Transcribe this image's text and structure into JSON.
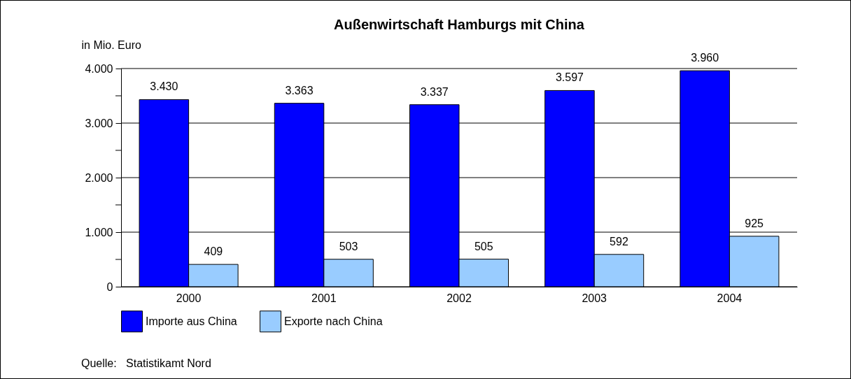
{
  "chart_data": {
    "type": "bar",
    "title": "Außenwirtschaft Hamburgs mit China",
    "ylabel": "in Mio. Euro",
    "categories": [
      "2000",
      "2001",
      "2002",
      "2003",
      "2004"
    ],
    "series": [
      {
        "name": "Importe aus China",
        "color": "#0000ff",
        "values": [
          3430,
          3363,
          3337,
          3597,
          3960
        ],
        "value_labels": [
          "3.430",
          "3.363",
          "3.337",
          "3.597",
          "3.960"
        ]
      },
      {
        "name": "Exporte nach China",
        "color": "#99ccff",
        "values": [
          409,
          503,
          505,
          592,
          925
        ],
        "value_labels": [
          "409",
          "503",
          "505",
          "592",
          "925"
        ]
      }
    ],
    "ylim": [
      0,
      4000
    ],
    "yticks": [
      0,
      {
        "value": 500,
        "label": null
      },
      {
        "value": 1000,
        "label": "1.000"
      },
      {
        "value": 1500,
        "label": null
      },
      {
        "value": 2000,
        "label": "2.000"
      },
      {
        "value": 2500,
        "label": null
      },
      {
        "value": 3000,
        "label": "3.000"
      },
      {
        "value": 3500,
        "label": null
      },
      {
        "value": 4000,
        "label": "4.000"
      }
    ],
    "grid": "y",
    "legend": "bottom",
    "annotations": [
      "Quelle:   Statistikamt Nord"
    ]
  }
}
